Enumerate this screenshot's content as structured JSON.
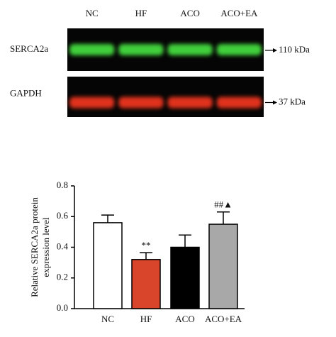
{
  "blot": {
    "lanes": [
      "NC",
      "HF",
      "ACO",
      "ACO+EA"
    ],
    "rows": [
      {
        "label": "SERCA2a",
        "size": "110 kDa"
      },
      {
        "label": "GAPDH",
        "size": "37 kDa"
      }
    ]
  },
  "chart_data": {
    "type": "bar",
    "ylabel": [
      "Relative SERCA2a protein",
      "expression level"
    ],
    "categories": [
      "NC",
      "HF",
      "ACO",
      "ACO+EA"
    ],
    "values": [
      0.56,
      0.32,
      0.4,
      0.55
    ],
    "errors": [
      0.05,
      0.045,
      0.08,
      0.08
    ],
    "colors": [
      "#ffffff",
      "#d9452b",
      "#000000",
      "#a8a8a8"
    ],
    "annotations": [
      null,
      "**",
      null,
      "##▲"
    ],
    "ylim": [
      0,
      0.8
    ],
    "yticks": [
      {
        "value": 0,
        "label": "0.0"
      },
      0.2,
      0.4,
      0.6,
      0.8
    ]
  }
}
